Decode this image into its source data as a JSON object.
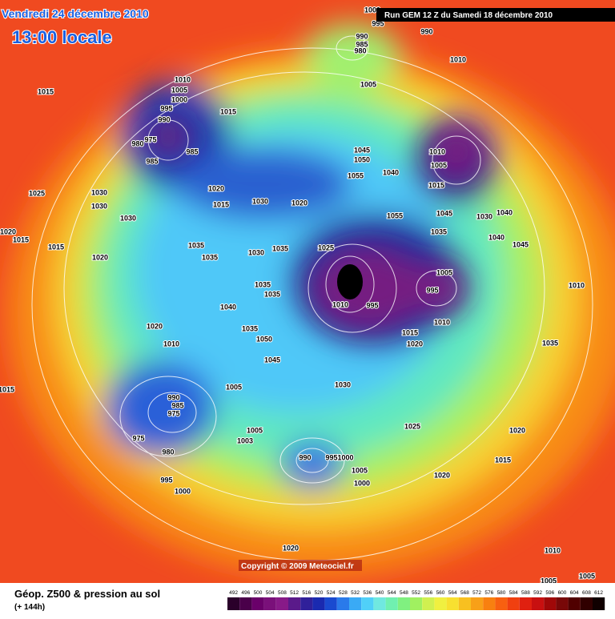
{
  "header": {
    "date": "Vendredi 24 décembre 2010",
    "time": "13:00 locale",
    "run": "Run GEM 12 Z du Samedi 18 décembre 2010"
  },
  "copyright": "Copyright © 2009 Meteociel.fr",
  "isobar_labels": [
    "1000",
    "995",
    "990",
    "990",
    "985",
    "980",
    "1010",
    "1005",
    "1015",
    "1010",
    "1005",
    "1000",
    "995",
    "990",
    "975",
    "980",
    "985",
    "985",
    "1015",
    "1045",
    "1050",
    "1055",
    "1040",
    "1010",
    "1005",
    "1015",
    "1025",
    "1030",
    "1030",
    "1020",
    "1015",
    "1030",
    "1020",
    "1030",
    "1055",
    "1045",
    "1030",
    "1040",
    "1035",
    "1040",
    "1045",
    "1020",
    "1015",
    "1015",
    "1020",
    "1035",
    "1035",
    "1030",
    "1035",
    "1025",
    "1005",
    "995",
    "1010",
    "1010",
    "995",
    "1010",
    "1015",
    "1020",
    "1020",
    "1010",
    "1035",
    "1035",
    "1035",
    "1040",
    "1035",
    "1050",
    "1045",
    "1015",
    "1005",
    "1030",
    "990",
    "985",
    "975",
    "1025",
    "1020",
    "1005",
    "1003",
    "975",
    "980",
    "990",
    "9951000",
    "1015",
    "1005",
    "1000",
    "995",
    "1000",
    "1020",
    "1020",
    "1010",
    "1005",
    "1005"
  ],
  "legend": {
    "title": "Géop. Z500 & pression au sol",
    "subtitle": "(+ 144h)",
    "levels": [
      492,
      496,
      500,
      504,
      508,
      512,
      516,
      520,
      524,
      528,
      532,
      536,
      540,
      544,
      548,
      552,
      556,
      560,
      564,
      568,
      572,
      576,
      580,
      584,
      588,
      592,
      596,
      600,
      604,
      608,
      612
    ],
    "colors": [
      "#2a002a",
      "#4a004a",
      "#6a006a",
      "#7a107a",
      "#881a88",
      "#5a1a8a",
      "#30209a",
      "#1a2ab0",
      "#1a4ad0",
      "#2a7aea",
      "#3aaaf5",
      "#50d0f8",
      "#70e8e0",
      "#70f0b0",
      "#80f080",
      "#a0f060",
      "#d0f050",
      "#f0f040",
      "#f8e030",
      "#f8c020",
      "#f8a018",
      "#f88010",
      "#f86010",
      "#f04010",
      "#e02010",
      "#c81010",
      "#a00808",
      "#780808",
      "#500000",
      "#300000",
      "#100000"
    ]
  }
}
